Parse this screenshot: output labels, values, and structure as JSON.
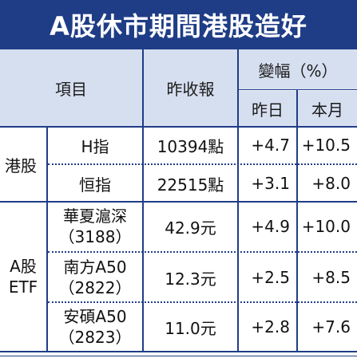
{
  "title": "A股休市期間港股造好",
  "header": {
    "item": "項目",
    "close": "昨收報",
    "change": "變幅（%）",
    "yesterday": "昨日",
    "month": "本月"
  },
  "groups": {
    "hk": "港股",
    "a_line1": "A股",
    "a_line2": "ETF"
  },
  "rows": [
    {
      "name": "H指",
      "close": "10394點",
      "day": "+4.7",
      "month": "+10.5"
    },
    {
      "name": "恒指",
      "close": "22515點",
      "day": "+3.1",
      "month": "+8.0"
    },
    {
      "name1": "華夏滬深",
      "name2": "（3188）",
      "close": "42.9元",
      "day": "+4.9",
      "month": "+10.0"
    },
    {
      "name1": "南方A50",
      "name2": "（2822）",
      "close": "12.3元",
      "day": "+2.5",
      "month": "+8.5"
    },
    {
      "name1": "安碩A50",
      "name2": "（2823）",
      "close": "11.0元",
      "day": "+2.8",
      "month": "+7.6"
    }
  ],
  "colors": {
    "title_bg": "#1f3d86",
    "header_bg": "#d6dff0",
    "rule": "#1f3d86"
  }
}
